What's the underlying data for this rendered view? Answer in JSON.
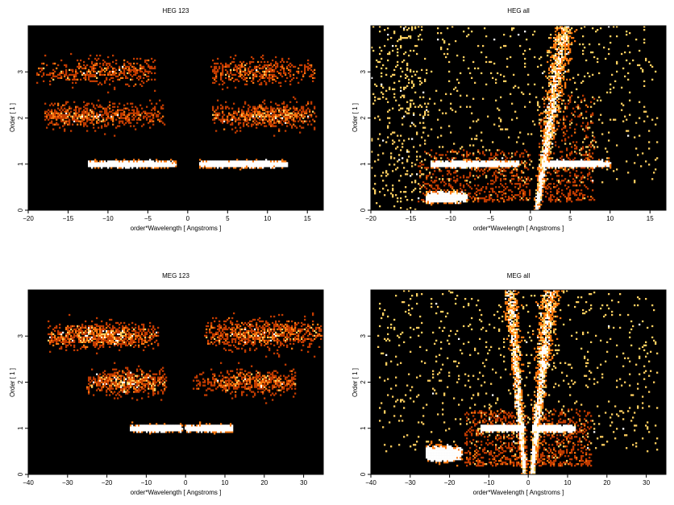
{
  "chart_data": [
    {
      "type": "heatmap",
      "title": "HEG 123",
      "xlabel": "order*Wavelength [ Angstroms ]",
      "ylabel": "Order [ 1 ]",
      "xlim": [
        -20,
        17
      ],
      "ylim": [
        0,
        4
      ],
      "xticks": [
        -20,
        -15,
        -10,
        -5,
        0,
        5,
        10,
        15
      ],
      "yticks": [
        0,
        1,
        2,
        3
      ],
      "background": "#000000",
      "colormap": [
        "#6b1a00",
        "#c23b00",
        "#ff7a10",
        "#ffd060",
        "#ffffff"
      ],
      "features": [
        {
          "kind": "band",
          "x": [
            -12.5,
            -1.5
          ],
          "y": 1.0,
          "spread": 0.05,
          "peak": -7,
          "intensity": 1.0
        },
        {
          "kind": "band",
          "x": [
            1.5,
            12.5
          ],
          "y": 1.0,
          "spread": 0.05,
          "peak": 6,
          "intensity": 1.0
        },
        {
          "kind": "band",
          "x": [
            -18,
            -3
          ],
          "y": 2.05,
          "spread": 0.08,
          "peak": -13,
          "intensity": 0.35
        },
        {
          "kind": "band",
          "x": [
            3,
            16
          ],
          "y": 2.05,
          "spread": 0.08,
          "peak": 11,
          "intensity": 0.35
        },
        {
          "kind": "band",
          "x": [
            -19,
            -4
          ],
          "y": 3.0,
          "spread": 0.08,
          "peak": -10,
          "intensity": 0.25
        },
        {
          "kind": "band",
          "x": [
            3,
            16
          ],
          "y": 3.0,
          "spread": 0.08,
          "peak": 8,
          "intensity": 0.25
        }
      ]
    },
    {
      "type": "heatmap",
      "title": "HEG all",
      "xlabel": "order*Wavelength [ Angstroms ]",
      "ylabel": "Order [ 1 ]",
      "xlim": [
        -20,
        17
      ],
      "ylim": [
        0,
        4
      ],
      "xticks": [
        -20,
        -15,
        -10,
        -5,
        0,
        5,
        10,
        15
      ],
      "yticks": [
        0,
        1,
        2,
        3
      ],
      "background": "#000000",
      "colormap": [
        "#6b1a00",
        "#c23b00",
        "#ff7a10",
        "#ffd060",
        "#ffffff"
      ],
      "features": [
        {
          "kind": "band",
          "x": [
            -12.5,
            -1.5
          ],
          "y": 1.0,
          "spread": 0.05,
          "peak": -7,
          "intensity": 1.0
        },
        {
          "kind": "band",
          "x": [
            1.5,
            10
          ],
          "y": 1.0,
          "spread": 0.05,
          "peak": 5,
          "intensity": 1.0
        },
        {
          "kind": "band",
          "x": [
            -13,
            -8
          ],
          "y": 0.28,
          "spread": 0.08,
          "peak": -11,
          "intensity": 0.8
        },
        {
          "kind": "wedge",
          "x0": 0.8,
          "y0": 0.0,
          "x1": 4.3,
          "y1": 4.0,
          "width": 0.5,
          "intensity": 0.9
        },
        {
          "kind": "spray",
          "x": [
            -14,
            0
          ],
          "y": [
            0.2,
            1.3
          ],
          "intensity": 0.6
        },
        {
          "kind": "spray",
          "x": [
            1,
            8
          ],
          "y": [
            0.2,
            2.5
          ],
          "intensity": 0.5
        },
        {
          "kind": "noise",
          "x": [
            -18,
            16
          ],
          "y": [
            0.6,
            4.0
          ],
          "density": 0.9
        },
        {
          "kind": "noise",
          "x": [
            -20,
            -13
          ],
          "y": [
            0.0,
            4.0
          ],
          "density": 0.4
        }
      ]
    },
    {
      "type": "heatmap",
      "title": "MEG 123",
      "xlabel": "order*Wavelength [ Angstroms ]",
      "ylabel": "Order [ 1 ]",
      "xlim": [
        -40,
        35
      ],
      "ylim": [
        0,
        4
      ],
      "xticks": [
        -40,
        -30,
        -20,
        -10,
        0,
        10,
        20,
        30
      ],
      "yticks": [
        0,
        1,
        2,
        3
      ],
      "background": "#000000",
      "colormap": [
        "#6b1a00",
        "#c23b00",
        "#ff7a10",
        "#ffd060",
        "#ffffff"
      ],
      "features": [
        {
          "kind": "band",
          "x": [
            -14,
            -1
          ],
          "y": 1.0,
          "spread": 0.05,
          "peak": -7,
          "intensity": 1.0
        },
        {
          "kind": "band",
          "x": [
            0,
            12
          ],
          "y": 1.0,
          "spread": 0.05,
          "peak": 7,
          "intensity": 1.0
        },
        {
          "kind": "band",
          "x": [
            -25,
            -5
          ],
          "y": 2.0,
          "spread": 0.08,
          "peak": -15,
          "intensity": 0.35
        },
        {
          "kind": "band",
          "x": [
            2,
            28
          ],
          "y": 2.0,
          "spread": 0.08,
          "peak": 18,
          "intensity": 0.3
        },
        {
          "kind": "band",
          "x": [
            -35,
            -7
          ],
          "y": 3.0,
          "spread": 0.08,
          "peak": -22,
          "intensity": 0.5
        },
        {
          "kind": "band",
          "x": [
            5,
            35
          ],
          "y": 3.05,
          "spread": 0.1,
          "peak": 20,
          "intensity": 0.45
        }
      ]
    },
    {
      "type": "heatmap",
      "title": "MEG all",
      "xlabel": "order*Wavelength [ Angstroms ]",
      "ylabel": "Order [ 1 ]",
      "xlim": [
        -40,
        35
      ],
      "ylim": [
        0,
        4
      ],
      "xticks": [
        -40,
        -30,
        -20,
        -10,
        0,
        10,
        20,
        30
      ],
      "yticks": [
        0,
        1,
        2,
        3
      ],
      "background": "#000000",
      "colormap": [
        "#6b1a00",
        "#c23b00",
        "#ff7a10",
        "#ffd060",
        "#ffffff"
      ],
      "features": [
        {
          "kind": "band",
          "x": [
            -12,
            -1
          ],
          "y": 1.0,
          "spread": 0.05,
          "peak": -7,
          "intensity": 1.0
        },
        {
          "kind": "band",
          "x": [
            1,
            12
          ],
          "y": 1.0,
          "spread": 0.05,
          "peak": 7,
          "intensity": 1.0
        },
        {
          "kind": "band",
          "x": [
            -26,
            -17
          ],
          "y": 0.45,
          "spread": 0.12,
          "peak": -22,
          "intensity": 0.8
        },
        {
          "kind": "wedge",
          "x0": -1.0,
          "y0": 0.0,
          "x1": -4.5,
          "y1": 4.0,
          "width": 0.7,
          "intensity": 0.7
        },
        {
          "kind": "wedge",
          "x0": 1.0,
          "y0": 0.0,
          "x1": 5.5,
          "y1": 4.0,
          "width": 0.9,
          "intensity": 0.9
        },
        {
          "kind": "spray",
          "x": [
            -16,
            0
          ],
          "y": [
            0.2,
            1.4
          ],
          "intensity": 0.55
        },
        {
          "kind": "spray",
          "x": [
            1,
            16
          ],
          "y": [
            0.2,
            1.4
          ],
          "intensity": 0.5
        },
        {
          "kind": "noise",
          "x": [
            -38,
            33
          ],
          "y": [
            0.5,
            4.0
          ],
          "density": 1.0
        }
      ]
    }
  ]
}
